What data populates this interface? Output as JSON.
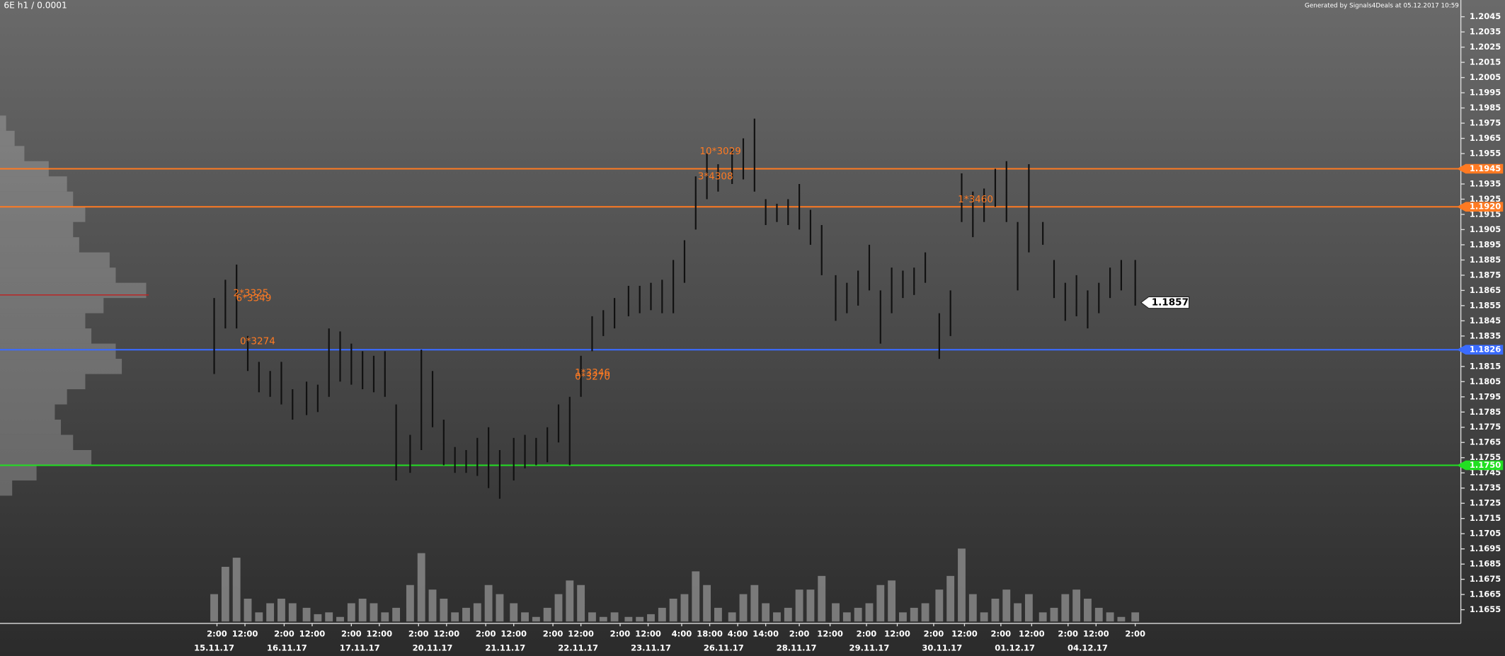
{
  "chart_data": {
    "type": "range-bar",
    "title": "6E h1 / 0.0001",
    "credit": "Generated by Signals4Deals at 05.12.2017 10:59",
    "xlim": [
      -77.5,
      444.3
    ],
    "ylim": [
      1.1646,
      1.2056
    ],
    "yticks": [
      1.1655,
      1.1665,
      1.1675,
      1.1685,
      1.1695,
      1.1705,
      1.1715,
      1.1725,
      1.1735,
      1.1745,
      1.1755,
      1.1765,
      1.1775,
      1.1785,
      1.1795,
      1.1805,
      1.1815,
      1.1825,
      1.1835,
      1.1845,
      1.1855,
      1.1865,
      1.1875,
      1.1885,
      1.1895,
      1.1905,
      1.1915,
      1.1925,
      1.1935,
      1.1945,
      1.1955,
      1.1965,
      1.1975,
      1.1985,
      1.1995,
      1.2005,
      1.2015,
      1.2025,
      1.2035,
      1.2045
    ],
    "xticks": [
      {
        "value": 0,
        "label": "2:00"
      },
      {
        "value": 10,
        "label": "12:00"
      },
      {
        "value": 24,
        "label": "2:00"
      },
      {
        "value": 34,
        "label": "12:00"
      },
      {
        "value": 48,
        "label": "2:00"
      },
      {
        "value": 58,
        "label": "12:00"
      },
      {
        "value": 72,
        "label": "2:00"
      },
      {
        "value": 82,
        "label": "12:00"
      },
      {
        "value": 96,
        "label": "2:00"
      },
      {
        "value": 106,
        "label": "12:00"
      },
      {
        "value": 120,
        "label": "2:00"
      },
      {
        "value": 130,
        "label": "12:00"
      },
      {
        "value": 144,
        "label": "2:00"
      },
      {
        "value": 154,
        "label": "12:00"
      },
      {
        "value": 166,
        "label": "4:00"
      },
      {
        "value": 176,
        "label": "18:00"
      },
      {
        "value": 186,
        "label": "4:00"
      },
      {
        "value": 196,
        "label": "14:00"
      },
      {
        "value": 208,
        "label": "2:00"
      },
      {
        "value": 219,
        "label": "12:00"
      },
      {
        "value": 232,
        "label": "2:00"
      },
      {
        "value": 243,
        "label": "12:00"
      },
      {
        "value": 256,
        "label": "2:00"
      },
      {
        "value": 267,
        "label": "12:00"
      },
      {
        "value": 280,
        "label": "2:00"
      },
      {
        "value": 291,
        "label": "12:00"
      },
      {
        "value": 304,
        "label": "2:00"
      },
      {
        "value": 314,
        "label": "12:00"
      },
      {
        "value": 328,
        "label": "2:00"
      }
    ],
    "date_ticks": [
      {
        "value": -1,
        "label": "15.11.17"
      },
      {
        "value": 25,
        "label": "16.11.17"
      },
      {
        "value": 51,
        "label": "17.11.17"
      },
      {
        "value": 77,
        "label": "20.11.17"
      },
      {
        "value": 103,
        "label": "21.11.17"
      },
      {
        "value": 129,
        "label": "22.11.17"
      },
      {
        "value": 155,
        "label": "23.11.17"
      },
      {
        "value": 181,
        "label": "26.11.17"
      },
      {
        "value": 207,
        "label": "28.11.17"
      },
      {
        "value": 233,
        "label": "29.11.17"
      },
      {
        "value": 259,
        "label": "30.11.17"
      },
      {
        "value": 285,
        "label": "01.12.17"
      },
      {
        "value": 311,
        "label": "04.12.17"
      }
    ],
    "x": [
      -1,
      3,
      7,
      11,
      15,
      19,
      23,
      27,
      32,
      36,
      40,
      44,
      48,
      52,
      56,
      60,
      64,
      69,
      73,
      77,
      81,
      85,
      89,
      93,
      97,
      101,
      106,
      110,
      114,
      118,
      122,
      126,
      130,
      134,
      138,
      142,
      147,
      151,
      155,
      159,
      163,
      167,
      171,
      175,
      179,
      184,
      188,
      192,
      196,
      200,
      204,
      208,
      212,
      216,
      221,
      225,
      229,
      233,
      237,
      241,
      245,
      249,
      253,
      258,
      262,
      266,
      270,
      274,
      278,
      282,
      286,
      290,
      295,
      299,
      303,
      307,
      311,
      315,
      319,
      323,
      328
    ],
    "low": [
      1.181,
      1.184,
      1.184,
      1.1812,
      1.1798,
      1.1795,
      1.179,
      1.178,
      1.1783,
      1.1785,
      1.1795,
      1.1805,
      1.1803,
      1.18,
      1.1798,
      1.1795,
      1.174,
      1.1745,
      1.176,
      1.1775,
      1.175,
      1.1745,
      1.1745,
      1.1743,
      1.1735,
      1.1728,
      1.174,
      1.1748,
      1.175,
      1.1752,
      1.1765,
      1.175,
      1.1795,
      1.1825,
      1.1835,
      1.184,
      1.1848,
      1.185,
      1.1852,
      1.185,
      1.185,
      1.187,
      1.1905,
      1.1925,
      1.193,
      1.1935,
      1.1938,
      1.193,
      1.1908,
      1.191,
      1.1908,
      1.1905,
      1.1895,
      1.1875,
      1.1845,
      1.185,
      1.1855,
      1.1865,
      1.183,
      1.185,
      1.186,
      1.1862,
      1.187,
      1.182,
      1.1835,
      1.191,
      1.19,
      1.191,
      1.192,
      1.191,
      1.1865,
      1.189,
      1.1895,
      1.186,
      1.1845,
      1.1848,
      1.184,
      1.185,
      1.186,
      1.1865,
      1.1855
    ],
    "high": [
      1.186,
      1.1872,
      1.1882,
      1.1835,
      1.1818,
      1.1812,
      1.1818,
      1.18,
      1.1805,
      1.1803,
      1.184,
      1.1838,
      1.183,
      1.1825,
      1.1822,
      1.1825,
      1.179,
      1.177,
      1.1826,
      1.1812,
      1.178,
      1.1762,
      1.176,
      1.1768,
      1.1775,
      1.176,
      1.1768,
      1.177,
      1.1768,
      1.1775,
      1.179,
      1.1795,
      1.1822,
      1.1848,
      1.1852,
      1.186,
      1.1868,
      1.1868,
      1.187,
      1.1872,
      1.1885,
      1.1898,
      1.194,
      1.1955,
      1.1948,
      1.1958,
      1.1965,
      1.1978,
      1.1925,
      1.1922,
      1.1925,
      1.1935,
      1.1918,
      1.1908,
      1.1875,
      1.187,
      1.1878,
      1.1895,
      1.1865,
      1.188,
      1.1878,
      1.188,
      1.189,
      1.185,
      1.1865,
      1.1942,
      1.193,
      1.1932,
      1.1945,
      1.195,
      1.191,
      1.1948,
      1.191,
      1.1885,
      1.187,
      1.1875,
      1.1865,
      1.187,
      1.188,
      1.1885,
      1.1885
    ],
    "volume": [
      30,
      60,
      70,
      25,
      10,
      20,
      25,
      20,
      15,
      8,
      10,
      5,
      20,
      25,
      20,
      10,
      15,
      40,
      75,
      35,
      25,
      10,
      15,
      20,
      40,
      30,
      20,
      10,
      5,
      15,
      30,
      45,
      40,
      10,
      5,
      10,
      5,
      5,
      8,
      15,
      25,
      30,
      55,
      40,
      15,
      10,
      30,
      40,
      20,
      10,
      15,
      35,
      35,
      50,
      20,
      10,
      15,
      20,
      40,
      45,
      10,
      15,
      20,
      35,
      50,
      80,
      30,
      10,
      25,
      35,
      20,
      30,
      10,
      15,
      30,
      35,
      25,
      15,
      10,
      5,
      10
    ],
    "volume_lim": [
      0,
      100
    ],
    "profile_prices": [
      1.1975,
      1.1965,
      1.1955,
      1.1945,
      1.1935,
      1.1925,
      1.1915,
      1.1905,
      1.1895,
      1.1885,
      1.1875,
      1.1865,
      1.1855,
      1.1845,
      1.1835,
      1.1825,
      1.1815,
      1.1805,
      1.1795,
      1.1785,
      1.1775,
      1.1765,
      1.1755,
      1.1745,
      1.1735
    ],
    "profile_values": [
      5,
      12,
      20,
      40,
      55,
      60,
      70,
      60,
      65,
      90,
      95,
      120,
      85,
      70,
      75,
      95,
      100,
      70,
      55,
      45,
      50,
      60,
      75,
      30,
      10
    ],
    "profile_lim": [
      0,
      130
    ],
    "poc": 1.1862,
    "levels": [
      {
        "value": 1.1945,
        "label": "1.1945",
        "color": "#ff7a22"
      },
      {
        "value": 1.192,
        "label": "1.1920",
        "color": "#ff7a22"
      },
      {
        "value": 1.1826,
        "label": "1.1826",
        "color": "#3a6bff"
      },
      {
        "value": 1.175,
        "label": "1.1750",
        "color": "#22e022"
      }
    ],
    "last_price": 1.1857,
    "annotations": [
      "10*3029",
      "3*4308",
      "2*3325",
      "6*3349",
      "0*3274",
      "1*3460",
      "1*3346",
      "0*3270"
    ]
  }
}
